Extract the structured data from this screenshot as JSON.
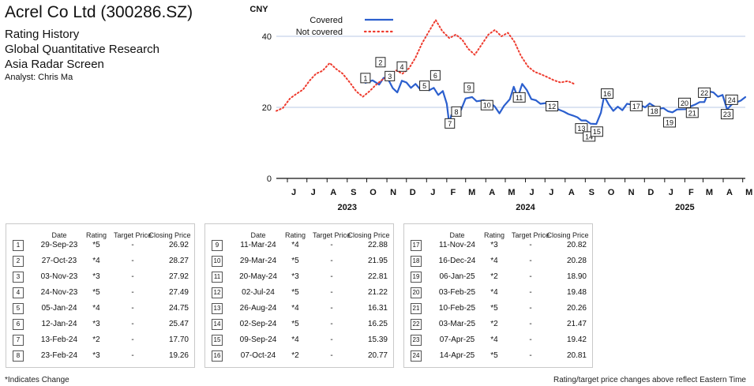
{
  "header": {
    "company": "Acrel Co Ltd (300286.SZ)",
    "lines": [
      "Rating History",
      "Global Quantitative Research",
      "Asia Radar Screen"
    ],
    "analyst": "Analyst: Chris Ma"
  },
  "chart_data": {
    "type": "line",
    "ylabel": "CNY",
    "ylim": [
      0,
      48
    ],
    "yticks": [
      0,
      20,
      40
    ],
    "grid": true,
    "legend": "top-left",
    "x_range": [
      "2023-05-15",
      "2025-05-05"
    ],
    "month_ticks": [
      {
        "date": "2023-06-01",
        "label": "J"
      },
      {
        "date": "2023-07-01",
        "label": "J"
      },
      {
        "date": "2023-08-01",
        "label": "A"
      },
      {
        "date": "2023-09-01",
        "label": "S"
      },
      {
        "date": "2023-10-01",
        "label": "O"
      },
      {
        "date": "2023-11-01",
        "label": "N"
      },
      {
        "date": "2023-12-01",
        "label": "D"
      },
      {
        "date": "2024-01-01",
        "label": "J"
      },
      {
        "date": "2024-02-01",
        "label": "F"
      },
      {
        "date": "2024-03-01",
        "label": "M"
      },
      {
        "date": "2024-04-01",
        "label": "A"
      },
      {
        "date": "2024-05-01",
        "label": "M"
      },
      {
        "date": "2024-06-01",
        "label": "J"
      },
      {
        "date": "2024-07-01",
        "label": "J"
      },
      {
        "date": "2024-08-01",
        "label": "A"
      },
      {
        "date": "2024-09-01",
        "label": "S"
      },
      {
        "date": "2024-10-01",
        "label": "O"
      },
      {
        "date": "2024-11-01",
        "label": "N"
      },
      {
        "date": "2024-12-01",
        "label": "D"
      },
      {
        "date": "2025-01-01",
        "label": "J"
      },
      {
        "date": "2025-02-01",
        "label": "F"
      },
      {
        "date": "2025-03-01",
        "label": "M"
      },
      {
        "date": "2025-04-01",
        "label": "A"
      },
      {
        "date": "2025-05-01",
        "label": "M"
      }
    ],
    "year_labels": [
      {
        "date": "2023-09-01",
        "label": "2023"
      },
      {
        "date": "2024-06-01",
        "label": "2024"
      },
      {
        "date": "2025-02-01",
        "label": "2025"
      }
    ],
    "series": [
      {
        "name": "Covered",
        "color": "#2b5fce",
        "style": "solid",
        "points": [
          [
            "2023-09-29",
            26.9
          ],
          [
            "2023-10-10",
            27.6
          ],
          [
            "2023-10-20",
            26.4
          ],
          [
            "2023-10-27",
            28.3
          ],
          [
            "2023-11-03",
            27.9
          ],
          [
            "2023-11-10",
            25.4
          ],
          [
            "2023-11-17",
            24.2
          ],
          [
            "2023-11-24",
            27.5
          ],
          [
            "2023-12-01",
            27.0
          ],
          [
            "2023-12-08",
            25.5
          ],
          [
            "2023-12-15",
            26.6
          ],
          [
            "2023-12-22",
            25.1
          ],
          [
            "2023-12-29",
            26.3
          ],
          [
            "2024-01-05",
            24.8
          ],
          [
            "2024-01-12",
            25.5
          ],
          [
            "2024-01-19",
            23.5
          ],
          [
            "2024-01-26",
            24.6
          ],
          [
            "2024-02-01",
            21.0
          ],
          [
            "2024-02-05",
            15.2
          ],
          [
            "2024-02-08",
            17.8
          ],
          [
            "2024-02-13",
            17.7
          ],
          [
            "2024-02-20",
            19.0
          ],
          [
            "2024-02-23",
            19.3
          ],
          [
            "2024-03-01",
            22.5
          ],
          [
            "2024-03-11",
            22.9
          ],
          [
            "2024-03-18",
            21.7
          ],
          [
            "2024-03-29",
            22.0
          ],
          [
            "2024-04-08",
            21.3
          ],
          [
            "2024-04-15",
            20.2
          ],
          [
            "2024-04-22",
            18.3
          ],
          [
            "2024-04-29",
            20.4
          ],
          [
            "2024-05-08",
            22.3
          ],
          [
            "2024-05-14",
            25.8
          ],
          [
            "2024-05-20",
            22.8
          ],
          [
            "2024-05-27",
            26.6
          ],
          [
            "2024-06-03",
            24.9
          ],
          [
            "2024-06-10",
            22.3
          ],
          [
            "2024-06-17",
            22.0
          ],
          [
            "2024-06-24",
            21.0
          ],
          [
            "2024-07-02",
            21.2
          ],
          [
            "2024-07-09",
            20.3
          ],
          [
            "2024-07-16",
            19.9
          ],
          [
            "2024-07-23",
            19.3
          ],
          [
            "2024-07-30",
            18.8
          ],
          [
            "2024-08-06",
            18.1
          ],
          [
            "2024-08-13",
            17.7
          ],
          [
            "2024-08-20",
            17.2
          ],
          [
            "2024-08-26",
            16.3
          ],
          [
            "2024-09-02",
            16.3
          ],
          [
            "2024-09-09",
            15.4
          ],
          [
            "2024-09-18",
            15.3
          ],
          [
            "2024-09-25",
            18.5
          ],
          [
            "2024-09-30",
            23.2
          ],
          [
            "2024-10-07",
            20.8
          ],
          [
            "2024-10-14",
            19.0
          ],
          [
            "2024-10-21",
            20.2
          ],
          [
            "2024-10-28",
            19.2
          ],
          [
            "2024-11-04",
            21.0
          ],
          [
            "2024-11-11",
            20.8
          ],
          [
            "2024-11-18",
            19.8
          ],
          [
            "2024-11-25",
            20.6
          ],
          [
            "2024-12-02",
            20.0
          ],
          [
            "2024-12-09",
            21.1
          ],
          [
            "2024-12-16",
            20.3
          ],
          [
            "2024-12-23",
            19.6
          ],
          [
            "2024-12-30",
            19.8
          ],
          [
            "2025-01-06",
            18.9
          ],
          [
            "2025-01-13",
            18.6
          ],
          [
            "2025-01-20",
            19.4
          ],
          [
            "2025-02-03",
            19.5
          ],
          [
            "2025-02-10",
            20.3
          ],
          [
            "2025-02-17",
            20.8
          ],
          [
            "2025-02-24",
            21.5
          ],
          [
            "2025-03-03",
            21.5
          ],
          [
            "2025-03-10",
            24.5
          ],
          [
            "2025-03-17",
            24.2
          ],
          [
            "2025-03-24",
            23.0
          ],
          [
            "2025-03-31",
            23.5
          ],
          [
            "2025-04-07",
            19.4
          ],
          [
            "2025-04-14",
            20.8
          ],
          [
            "2025-04-21",
            21.4
          ],
          [
            "2025-04-28",
            21.9
          ],
          [
            "2025-05-05",
            22.9
          ]
        ]
      },
      {
        "name": "Not covered",
        "color": "#ee3b2e",
        "style": "dotted",
        "points": [
          [
            "2023-05-15",
            19.0
          ],
          [
            "2023-05-25",
            19.8
          ],
          [
            "2023-06-05",
            22.5
          ],
          [
            "2023-06-15",
            23.8
          ],
          [
            "2023-06-25",
            25.0
          ],
          [
            "2023-07-05",
            27.5
          ],
          [
            "2023-07-15",
            29.5
          ],
          [
            "2023-07-25",
            30.3
          ],
          [
            "2023-08-05",
            32.5
          ],
          [
            "2023-08-15",
            30.8
          ],
          [
            "2023-08-25",
            29.5
          ],
          [
            "2023-09-05",
            27.0
          ],
          [
            "2023-09-15",
            24.5
          ],
          [
            "2023-09-25",
            23.0
          ],
          [
            "2023-10-05",
            24.5
          ],
          [
            "2023-10-15",
            26.3
          ],
          [
            "2023-10-25",
            27.8
          ],
          [
            "2023-11-05",
            28.9
          ],
          [
            "2023-11-15",
            30.4
          ],
          [
            "2023-11-25",
            29.5
          ],
          [
            "2023-12-05",
            31.0
          ],
          [
            "2023-12-15",
            34.0
          ],
          [
            "2023-12-25",
            38.0
          ],
          [
            "2024-01-05",
            41.5
          ],
          [
            "2024-01-15",
            44.6
          ],
          [
            "2024-01-25",
            41.5
          ],
          [
            "2024-02-05",
            39.5
          ],
          [
            "2024-02-15",
            40.5
          ],
          [
            "2024-02-25",
            39.0
          ],
          [
            "2024-03-05",
            36.5
          ],
          [
            "2024-03-15",
            34.8
          ],
          [
            "2024-03-25",
            37.5
          ],
          [
            "2024-04-05",
            40.5
          ],
          [
            "2024-04-15",
            41.8
          ],
          [
            "2024-04-25",
            40.0
          ],
          [
            "2024-05-05",
            41.0
          ],
          [
            "2024-05-15",
            38.5
          ],
          [
            "2024-05-25",
            34.5
          ],
          [
            "2024-06-05",
            31.5
          ],
          [
            "2024-06-15",
            30.0
          ],
          [
            "2024-06-25",
            29.3
          ],
          [
            "2024-07-05",
            28.5
          ],
          [
            "2024-07-15",
            27.6
          ],
          [
            "2024-07-25",
            27.0
          ],
          [
            "2024-08-05",
            27.4
          ],
          [
            "2024-08-15",
            26.6
          ]
        ]
      }
    ],
    "markers": [
      {
        "n": "1",
        "date": "2023-09-29",
        "value": 26.92
      },
      {
        "n": "2",
        "date": "2023-10-27",
        "value": 28.27
      },
      {
        "n": "3",
        "date": "2023-11-03",
        "value": 27.92
      },
      {
        "n": "4",
        "date": "2023-11-24",
        "value": 27.49
      },
      {
        "n": "5",
        "date": "2024-01-05",
        "value": 24.75
      },
      {
        "n": "6",
        "date": "2024-01-12",
        "value": 25.47
      },
      {
        "n": "7",
        "date": "2024-02-13",
        "value": 17.7
      },
      {
        "n": "8",
        "date": "2024-02-23",
        "value": 19.26
      },
      {
        "n": "9",
        "date": "2024-03-11",
        "value": 22.88
      },
      {
        "n": "10",
        "date": "2024-03-29",
        "value": 21.95
      },
      {
        "n": "11",
        "date": "2024-05-20",
        "value": 22.81
      },
      {
        "n": "12",
        "date": "2024-07-02",
        "value": 21.22
      },
      {
        "n": "13",
        "date": "2024-08-26",
        "value": 16.31
      },
      {
        "n": "14",
        "date": "2024-09-02",
        "value": 16.25
      },
      {
        "n": "15",
        "date": "2024-09-09",
        "value": 15.39
      },
      {
        "n": "16",
        "date": "2024-10-07",
        "value": 20.77
      },
      {
        "n": "17",
        "date": "2024-11-11",
        "value": 20.82
      },
      {
        "n": "18",
        "date": "2024-12-16",
        "value": 20.28
      },
      {
        "n": "19",
        "date": "2025-01-06",
        "value": 18.9
      },
      {
        "n": "20",
        "date": "2025-02-03",
        "value": 19.48
      },
      {
        "n": "21",
        "date": "2025-02-10",
        "value": 20.26
      },
      {
        "n": "22",
        "date": "2025-03-03",
        "value": 21.47
      },
      {
        "n": "23",
        "date": "2025-04-07",
        "value": 19.42
      },
      {
        "n": "24",
        "date": "2025-04-14",
        "value": 20.81
      }
    ]
  },
  "table": {
    "headers": {
      "date": "Date",
      "rating": "Rating",
      "target": "Target Price",
      "close": "Closing Price"
    },
    "rows": [
      {
        "n": "1",
        "date": "29-Sep-23",
        "rating": "*5",
        "target": "-",
        "close": "26.92"
      },
      {
        "n": "2",
        "date": "27-Oct-23",
        "rating": "*4",
        "target": "-",
        "close": "28.27"
      },
      {
        "n": "3",
        "date": "03-Nov-23",
        "rating": "*3",
        "target": "-",
        "close": "27.92"
      },
      {
        "n": "4",
        "date": "24-Nov-23",
        "rating": "*5",
        "target": "-",
        "close": "27.49"
      },
      {
        "n": "5",
        "date": "05-Jan-24",
        "rating": "*4",
        "target": "-",
        "close": "24.75"
      },
      {
        "n": "6",
        "date": "12-Jan-24",
        "rating": "*3",
        "target": "-",
        "close": "25.47"
      },
      {
        "n": "7",
        "date": "13-Feb-24",
        "rating": "*2",
        "target": "-",
        "close": "17.70"
      },
      {
        "n": "8",
        "date": "23-Feb-24",
        "rating": "*3",
        "target": "-",
        "close": "19.26"
      },
      {
        "n": "9",
        "date": "11-Mar-24",
        "rating": "*4",
        "target": "-",
        "close": "22.88"
      },
      {
        "n": "10",
        "date": "29-Mar-24",
        "rating": "*5",
        "target": "-",
        "close": "21.95"
      },
      {
        "n": "11",
        "date": "20-May-24",
        "rating": "*3",
        "target": "-",
        "close": "22.81"
      },
      {
        "n": "12",
        "date": "02-Jul-24",
        "rating": "*5",
        "target": "-",
        "close": "21.22"
      },
      {
        "n": "13",
        "date": "26-Aug-24",
        "rating": "*4",
        "target": "-",
        "close": "16.31"
      },
      {
        "n": "14",
        "date": "02-Sep-24",
        "rating": "*5",
        "target": "-",
        "close": "16.25"
      },
      {
        "n": "15",
        "date": "09-Sep-24",
        "rating": "*4",
        "target": "-",
        "close": "15.39"
      },
      {
        "n": "16",
        "date": "07-Oct-24",
        "rating": "*2",
        "target": "-",
        "close": "20.77"
      },
      {
        "n": "17",
        "date": "11-Nov-24",
        "rating": "*3",
        "target": "-",
        "close": "20.82"
      },
      {
        "n": "18",
        "date": "16-Dec-24",
        "rating": "*4",
        "target": "-",
        "close": "20.28"
      },
      {
        "n": "19",
        "date": "06-Jan-25",
        "rating": "*2",
        "target": "-",
        "close": "18.90"
      },
      {
        "n": "20",
        "date": "03-Feb-25",
        "rating": "*4",
        "target": "-",
        "close": "19.48"
      },
      {
        "n": "21",
        "date": "10-Feb-25",
        "rating": "*5",
        "target": "-",
        "close": "20.26"
      },
      {
        "n": "22",
        "date": "03-Mar-25",
        "rating": "*2",
        "target": "-",
        "close": "21.47"
      },
      {
        "n": "23",
        "date": "07-Apr-25",
        "rating": "*4",
        "target": "-",
        "close": "19.42"
      },
      {
        "n": "24",
        "date": "14-Apr-25",
        "rating": "*5",
        "target": "-",
        "close": "20.81"
      }
    ]
  },
  "footer": {
    "left": "*Indicates Change",
    "right": "Rating/target price changes above reflect Eastern Time"
  }
}
